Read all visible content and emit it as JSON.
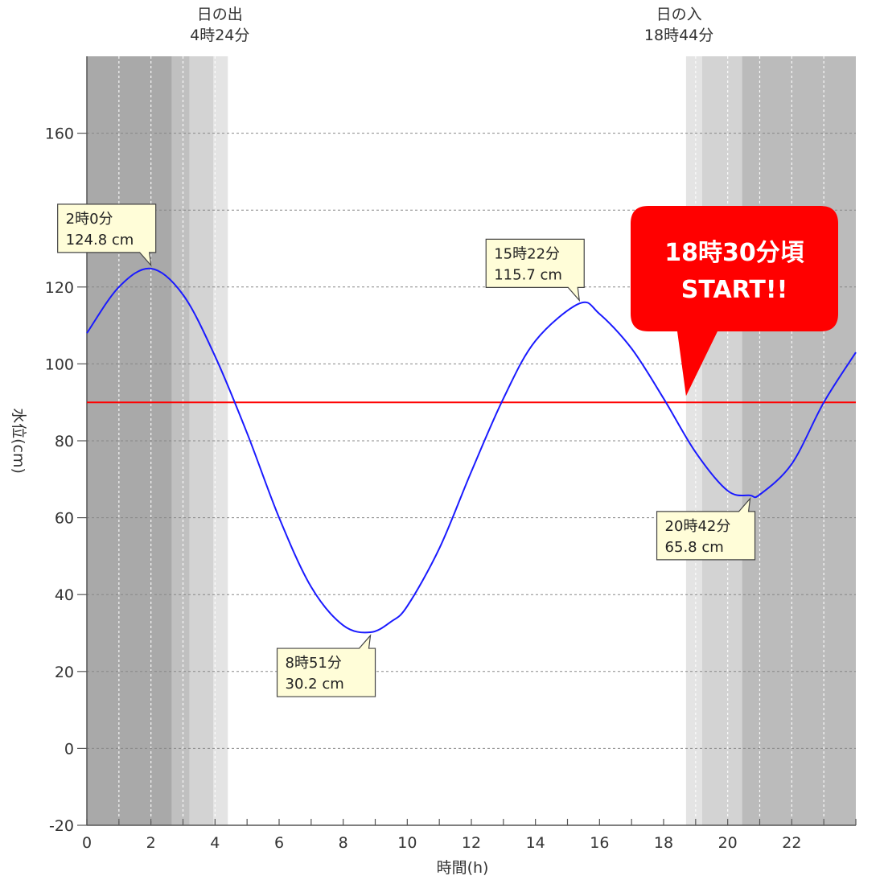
{
  "chart_data": {
    "type": "line",
    "xlabel": "時間(h)",
    "ylabel": "水位(cm)",
    "xlim": [
      0,
      24
    ],
    "ylim": [
      -20,
      180
    ],
    "xticks": [
      0,
      2,
      4,
      6,
      8,
      10,
      12,
      14,
      16,
      18,
      20,
      22
    ],
    "yticks": [
      -20,
      0,
      20,
      40,
      60,
      80,
      100,
      120,
      140,
      160
    ],
    "ytick_labels_shown": [
      "-20",
      "0",
      "20",
      "40",
      "60",
      "80",
      "100",
      "120",
      "160"
    ],
    "grid": true,
    "series": [
      {
        "color": "#1a1aff",
        "points": [
          [
            0,
            108
          ],
          [
            1,
            120
          ],
          [
            2,
            124.8
          ],
          [
            3,
            118
          ],
          [
            4,
            102
          ],
          [
            5,
            82
          ],
          [
            6,
            60
          ],
          [
            7,
            42
          ],
          [
            8,
            32
          ],
          [
            8.85,
            30.2
          ],
          [
            9.5,
            33
          ],
          [
            10,
            37
          ],
          [
            11,
            52
          ],
          [
            12,
            72
          ],
          [
            13,
            91
          ],
          [
            14,
            106
          ],
          [
            15.37,
            115.7
          ],
          [
            16,
            113
          ],
          [
            17,
            104
          ],
          [
            18,
            91
          ],
          [
            19,
            77
          ],
          [
            20,
            67
          ],
          [
            20.7,
            65.8
          ],
          [
            21,
            66
          ],
          [
            22,
            74
          ],
          [
            23,
            90
          ],
          [
            24,
            103
          ]
        ]
      }
    ],
    "reference_line": {
      "y": 90,
      "color": "#ff0000"
    },
    "daylight_bands": [
      {
        "from": 0,
        "to": 2.65,
        "shade": "#a9a9a9"
      },
      {
        "from": 2.65,
        "to": 3.2,
        "shade": "#c0c0c0"
      },
      {
        "from": 3.2,
        "to": 3.95,
        "shade": "#d3d3d3"
      },
      {
        "from": 3.95,
        "to": 4.4,
        "shade": "#e4e4e4"
      },
      {
        "from": 18.7,
        "to": 19.2,
        "shade": "#e4e4e4"
      },
      {
        "from": 19.2,
        "to": 20.45,
        "shade": "#d3d3d3"
      },
      {
        "from": 20.45,
        "to": 24,
        "shade": "#bbbbbb"
      }
    ],
    "sun_events": [
      {
        "line1": "日の出",
        "line2": "4時24分",
        "x": 4.4
      },
      {
        "line1": "日の入",
        "line2": "18時44分",
        "x": 18.73
      }
    ],
    "annotations": [
      {
        "time": "2時0分",
        "value": "124.8 cm",
        "x": 2.0,
        "y": 124.8,
        "pos": "above"
      },
      {
        "time": "8時51分",
        "value": "30.2 cm",
        "x": 8.85,
        "y": 30.2,
        "pos": "below"
      },
      {
        "time": "15時22分",
        "value": "115.7 cm",
        "x": 15.37,
        "y": 115.7,
        "pos": "above"
      },
      {
        "time": "20時42分",
        "value": "65.8 cm",
        "x": 20.7,
        "y": 65.8,
        "pos": "below"
      }
    ],
    "callout": {
      "line1": "18時30分頃",
      "line2": "START!!",
      "color": "#ff0000",
      "x": 18.5,
      "y": 90
    }
  }
}
